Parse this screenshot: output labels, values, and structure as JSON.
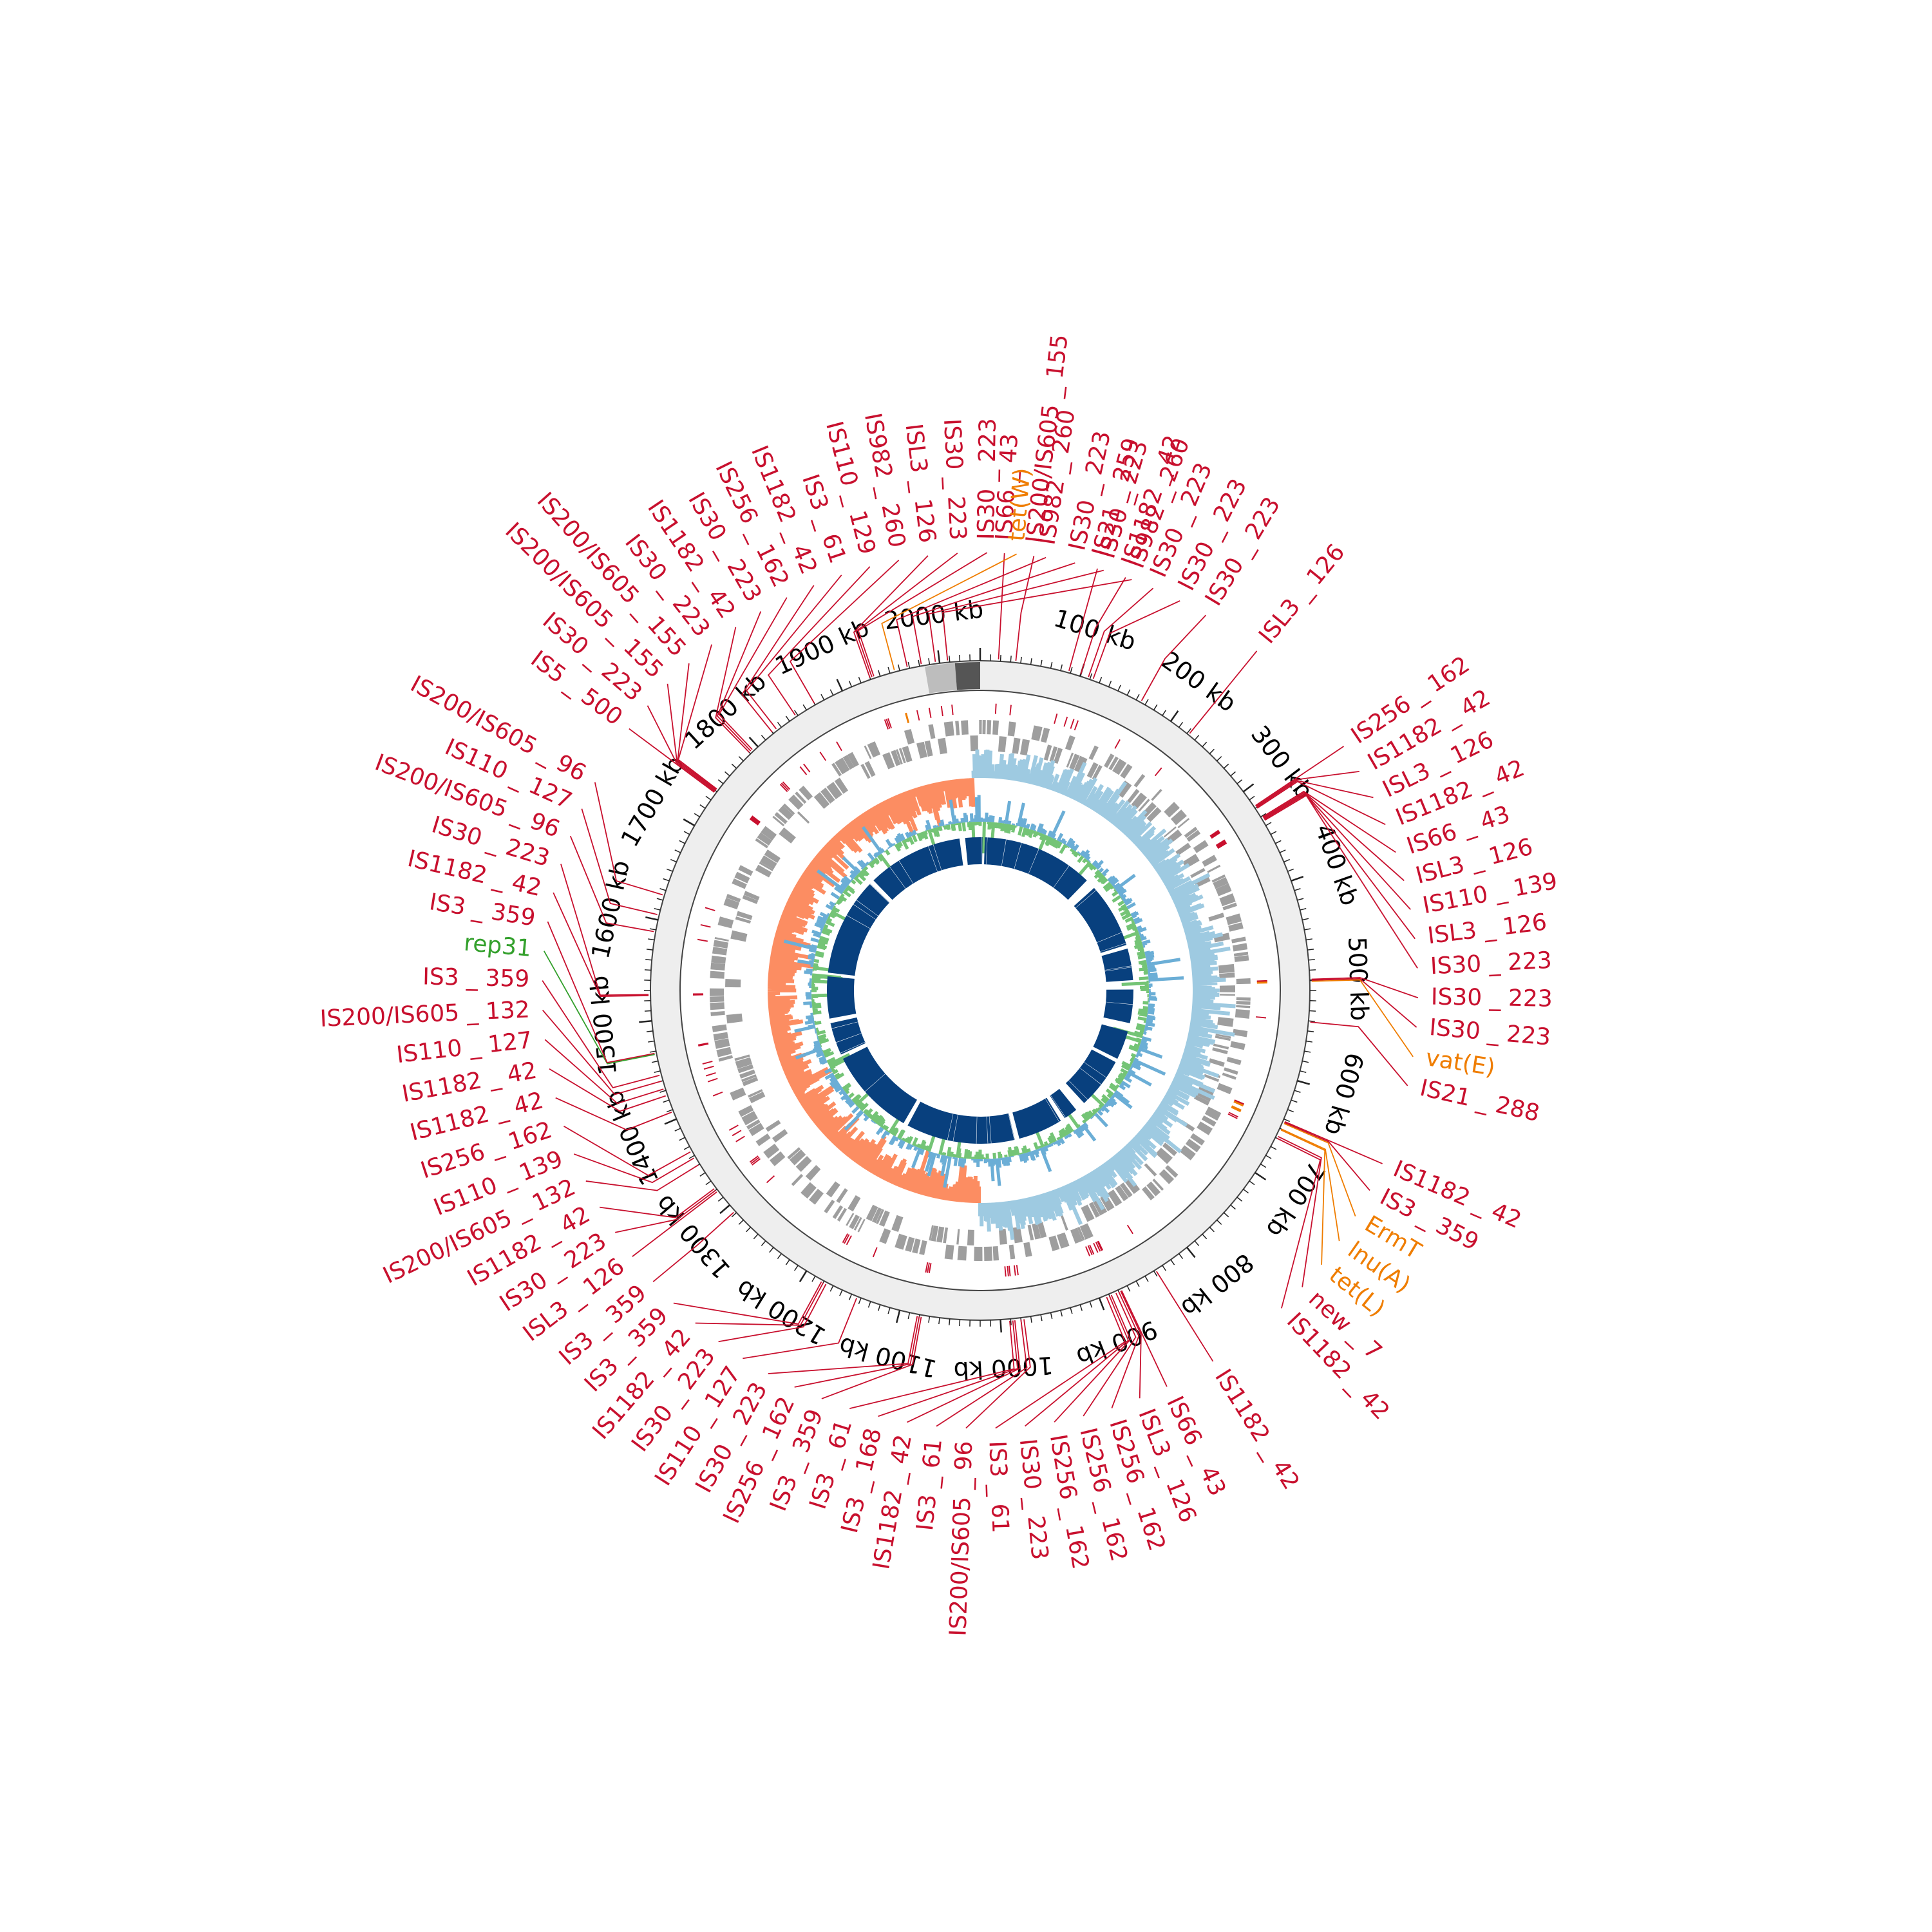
{
  "genome": {
    "length_kb": 2040,
    "tick_labels": [
      "100 kb",
      "200 kb",
      "300 kb",
      "400 kb",
      "500 kb",
      "600 kb",
      "700 kb",
      "800 kb",
      "900 kb",
      "1000 kb",
      "1100 kb",
      "1200 kb",
      "1300 kb",
      "1400 kb",
      "1500 kb",
      "1600 kb",
      "1700 kb",
      "1800 kb",
      "1900 kb",
      "2000 kb"
    ]
  },
  "colors": {
    "is_element": "#c8102e",
    "resistance_gene": "#ef7d00",
    "plasmid_rep": "#33a02c",
    "cds": "#9e9e9e",
    "backbone": "#eeeeee",
    "gc_skew_pos": "#9ecae1",
    "gc_skew_neg": "#fc8d62",
    "gc_content_pos": "#6baed6",
    "gc_content_neg": "#74c476",
    "blast_hit": "#08407e"
  },
  "annotations": [
    {
      "pos": 1996,
      "label": "IS30 _ 223",
      "type": "is"
    },
    {
      "pos": 2008,
      "label": "IS982 _ 260",
      "type": "is"
    },
    {
      "pos": 18,
      "label": "IS66 _ 43",
      "type": "is"
    },
    {
      "pos": 35,
      "label": "IS200/IS605 _ 155",
      "type": "is"
    },
    {
      "pos": 88,
      "label": "IS21 _ 259",
      "type": "is"
    },
    {
      "pos": 100,
      "label": "IS1182 _ 42",
      "type": "is"
    },
    {
      "pos": 108,
      "label": "IS30 _ 223",
      "type": "is"
    },
    {
      "pos": 113,
      "label": "IS30 _ 223",
      "type": "is"
    },
    {
      "pos": 165,
      "label": "IS30 _ 223",
      "type": "is"
    },
    {
      "pos": 222,
      "label": "ISL3 _ 126",
      "type": "is"
    },
    {
      "pos": 318,
      "label": "IS256 _ 162",
      "type": "is"
    },
    {
      "pos": 319,
      "label": "IS1182 _ 42",
      "type": "is"
    },
    {
      "pos": 320,
      "label": "ISL3 _ 126",
      "type": "is"
    },
    {
      "pos": 321,
      "label": "IS1182 _ 42",
      "type": "is"
    },
    {
      "pos": 331,
      "label": "IS66 _ 43",
      "type": "is"
    },
    {
      "pos": 332,
      "label": "ISL3 _ 126",
      "type": "is"
    },
    {
      "pos": 333,
      "label": "IS110 _ 139",
      "type": "is"
    },
    {
      "pos": 334,
      "label": "ISL3 _ 126",
      "type": "is"
    },
    {
      "pos": 335,
      "label": "IS30 _ 223",
      "type": "is"
    },
    {
      "pos": 499,
      "label": "IS30 _ 223",
      "type": "is"
    },
    {
      "pos": 500,
      "label": "IS30 _ 223",
      "type": "is"
    },
    {
      "pos": 501,
      "label": "vat(E)",
      "type": "res"
    },
    {
      "pos": 541,
      "label": "IS21 _ 288",
      "type": "is"
    },
    {
      "pos": 642,
      "label": "IS1182 _ 42",
      "type": "is"
    },
    {
      "pos": 643,
      "label": "IS3 _ 359",
      "type": "is"
    },
    {
      "pos": 644,
      "label": "ErmT",
      "type": "res"
    },
    {
      "pos": 650,
      "label": "lnu(A)",
      "type": "res"
    },
    {
      "pos": 651,
      "label": "tet(L)",
      "type": "res"
    },
    {
      "pos": 658,
      "label": "new _ 7",
      "type": "is"
    },
    {
      "pos": 660,
      "label": "IS1182 _ 42",
      "type": "is"
    },
    {
      "pos": 838,
      "label": "IS1182 _ 42",
      "type": "is"
    },
    {
      "pos": 877,
      "label": "IS66 _ 43",
      "type": "is"
    },
    {
      "pos": 878,
      "label": "ISL3 _ 126",
      "type": "is"
    },
    {
      "pos": 880,
      "label": "IS256 _ 162",
      "type": "is"
    },
    {
      "pos": 883,
      "label": "IS256 _ 162",
      "type": "is"
    },
    {
      "pos": 888,
      "label": "IS256 _ 162",
      "type": "is"
    },
    {
      "pos": 890,
      "label": "IS30 _ 223",
      "type": "is"
    },
    {
      "pos": 893,
      "label": "IS3 _ 61",
      "type": "is"
    },
    {
      "pos": 977,
      "label": "IS200/IS605 _ 96",
      "type": "is"
    },
    {
      "pos": 980,
      "label": "IS3 _ 61",
      "type": "is"
    },
    {
      "pos": 986,
      "label": "IS1182 _ 42",
      "type": "is"
    },
    {
      "pos": 988,
      "label": "IS3 _ 168",
      "type": "is"
    },
    {
      "pos": 991,
      "label": "IS3 _ 61",
      "type": "is"
    },
    {
      "pos": 1078,
      "label": "IS3 _ 359",
      "type": "is"
    },
    {
      "pos": 1080,
      "label": "IS256 _ 162",
      "type": "is"
    },
    {
      "pos": 1082,
      "label": "IS30 _ 223",
      "type": "is"
    },
    {
      "pos": 1144,
      "label": "IS110 _ 127",
      "type": "is"
    },
    {
      "pos": 1177,
      "label": "IS30 _ 223",
      "type": "is"
    },
    {
      "pos": 1180,
      "label": "IS1182 _ 42",
      "type": "is"
    },
    {
      "pos": 1182,
      "label": "IS3 _ 359",
      "type": "is"
    },
    {
      "pos": 1292,
      "label": "IS3 _ 359",
      "type": "is"
    },
    {
      "pos": 1318,
      "label": "ISL3 _ 126",
      "type": "is"
    },
    {
      "pos": 1320,
      "label": "IS30 _ 223",
      "type": "is"
    },
    {
      "pos": 1322,
      "label": "IS1182 _ 42",
      "type": "is"
    },
    {
      "pos": 1350,
      "label": "IS200/IS605 _ 132",
      "type": "is"
    },
    {
      "pos": 1358,
      "label": "IS110 _ 139",
      "type": "is"
    },
    {
      "pos": 1365,
      "label": "IS256 _ 162",
      "type": "is"
    },
    {
      "pos": 1408,
      "label": "IS1182 _ 42",
      "type": "is"
    },
    {
      "pos": 1425,
      "label": "IS1182 _ 42",
      "type": "is"
    },
    {
      "pos": 1432,
      "label": "IS110 _ 127",
      "type": "is"
    },
    {
      "pos": 1440,
      "label": "IS200/IS605 _ 132",
      "type": "is"
    },
    {
      "pos": 1446,
      "label": "IS3 _ 359",
      "type": "is"
    },
    {
      "pos": 1467,
      "label": "rep31",
      "type": "rep"
    },
    {
      "pos": 1468,
      "label": "IS3 _ 359",
      "type": "is"
    },
    {
      "pos": 1525,
      "label": "IS1182 _ 42",
      "type": "is"
    },
    {
      "pos": 1526,
      "label": "IS30 _ 223",
      "type": "is"
    },
    {
      "pos": 1588,
      "label": "IS200/IS605 _ 96",
      "type": "is"
    },
    {
      "pos": 1605,
      "label": "IS110 _ 127",
      "type": "is"
    },
    {
      "pos": 1625,
      "label": "IS200/IS605 _ 96",
      "type": "is"
    },
    {
      "pos": 1738,
      "label": "IS5 _ 500",
      "type": "is"
    },
    {
      "pos": 1739,
      "label": "IS30 _ 223",
      "type": "is"
    },
    {
      "pos": 1740,
      "label": "IS200/IS605 _ 155",
      "type": "is"
    },
    {
      "pos": 1741,
      "label": "IS200/IS605 _ 155",
      "type": "is"
    },
    {
      "pos": 1742,
      "label": "IS30 _ 223",
      "type": "is"
    },
    {
      "pos": 1790,
      "label": "IS1182 _ 42",
      "type": "is"
    },
    {
      "pos": 1792,
      "label": "IS30 _ 223",
      "type": "is"
    },
    {
      "pos": 1794,
      "label": "IS256 _ 162",
      "type": "is"
    },
    {
      "pos": 1820,
      "label": "IS1182 _ 42",
      "type": "is"
    },
    {
      "pos": 1825,
      "label": "IS3 _ 61",
      "type": "is"
    },
    {
      "pos": 1848,
      "label": "IS110 _ 129",
      "type": "is"
    },
    {
      "pos": 1870,
      "label": "IS982 _ 260",
      "type": "is"
    },
    {
      "pos": 1930,
      "label": "ISL3 _ 126",
      "type": "is"
    },
    {
      "pos": 1932,
      "label": "IS30 _ 223",
      "type": "is"
    },
    {
      "pos": 1934,
      "label": "IS30 _ 223",
      "type": "is"
    },
    {
      "pos": 1955,
      "label": "tet(W)",
      "type": "res"
    },
    {
      "pos": 1968,
      "label": "IS982 _ 260",
      "type": "is"
    },
    {
      "pos": 1982,
      "label": "IS30 _ 223",
      "type": "is"
    }
  ],
  "blast_gaps": [
    {
      "start": 1996,
      "end": 2008
    },
    {
      "start": 5,
      "end": 10
    },
    {
      "start": 250,
      "end": 272
    },
    {
      "start": 412,
      "end": 420
    },
    {
      "start": 488,
      "end": 508
    },
    {
      "start": 580,
      "end": 598
    },
    {
      "start": 660,
      "end": 668
    },
    {
      "start": 778,
      "end": 800
    },
    {
      "start": 830,
      "end": 840
    },
    {
      "start": 936,
      "end": 946
    },
    {
      "start": 1180,
      "end": 1190
    },
    {
      "start": 1380,
      "end": 1390
    },
    {
      "start": 1460,
      "end": 1470
    },
    {
      "start": 1560,
      "end": 1568
    },
    {
      "start": 1780,
      "end": 1790
    }
  ]
}
